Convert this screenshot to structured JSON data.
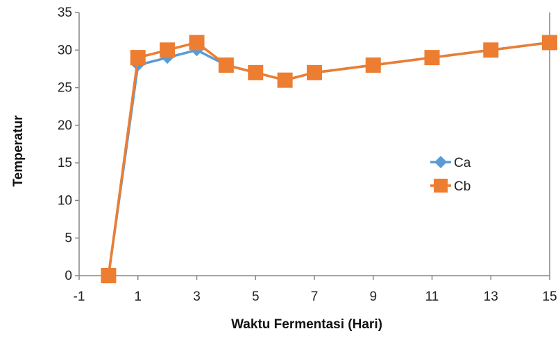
{
  "chart_data": {
    "type": "line",
    "title": "",
    "xlabel": "Waktu Fermentasi (Hari)",
    "ylabel": "Temperatur",
    "xlim": [
      -1,
      15
    ],
    "ylim": [
      0,
      35
    ],
    "x_ticks": [
      -1,
      1,
      3,
      5,
      7,
      9,
      11,
      13,
      15
    ],
    "y_ticks": [
      0,
      5,
      10,
      15,
      20,
      25,
      30,
      35
    ],
    "grid": false,
    "legend_position": "right",
    "series": [
      {
        "name": "Ca",
        "color": "#5B9BD5",
        "marker": "diamond",
        "x": [
          0,
          1,
          2,
          3,
          4,
          5,
          6,
          7,
          9,
          11,
          13,
          15
        ],
        "y": [
          0,
          28,
          29,
          30,
          28,
          27,
          26,
          27,
          28,
          29,
          30,
          31
        ]
      },
      {
        "name": "Cb",
        "color": "#ED7D31",
        "marker": "square",
        "x": [
          0,
          1,
          2,
          3,
          4,
          5,
          6,
          7,
          9,
          11,
          13,
          15
        ],
        "y": [
          0,
          29,
          30,
          31,
          28,
          27,
          26,
          27,
          28,
          29,
          30,
          31
        ]
      }
    ]
  }
}
